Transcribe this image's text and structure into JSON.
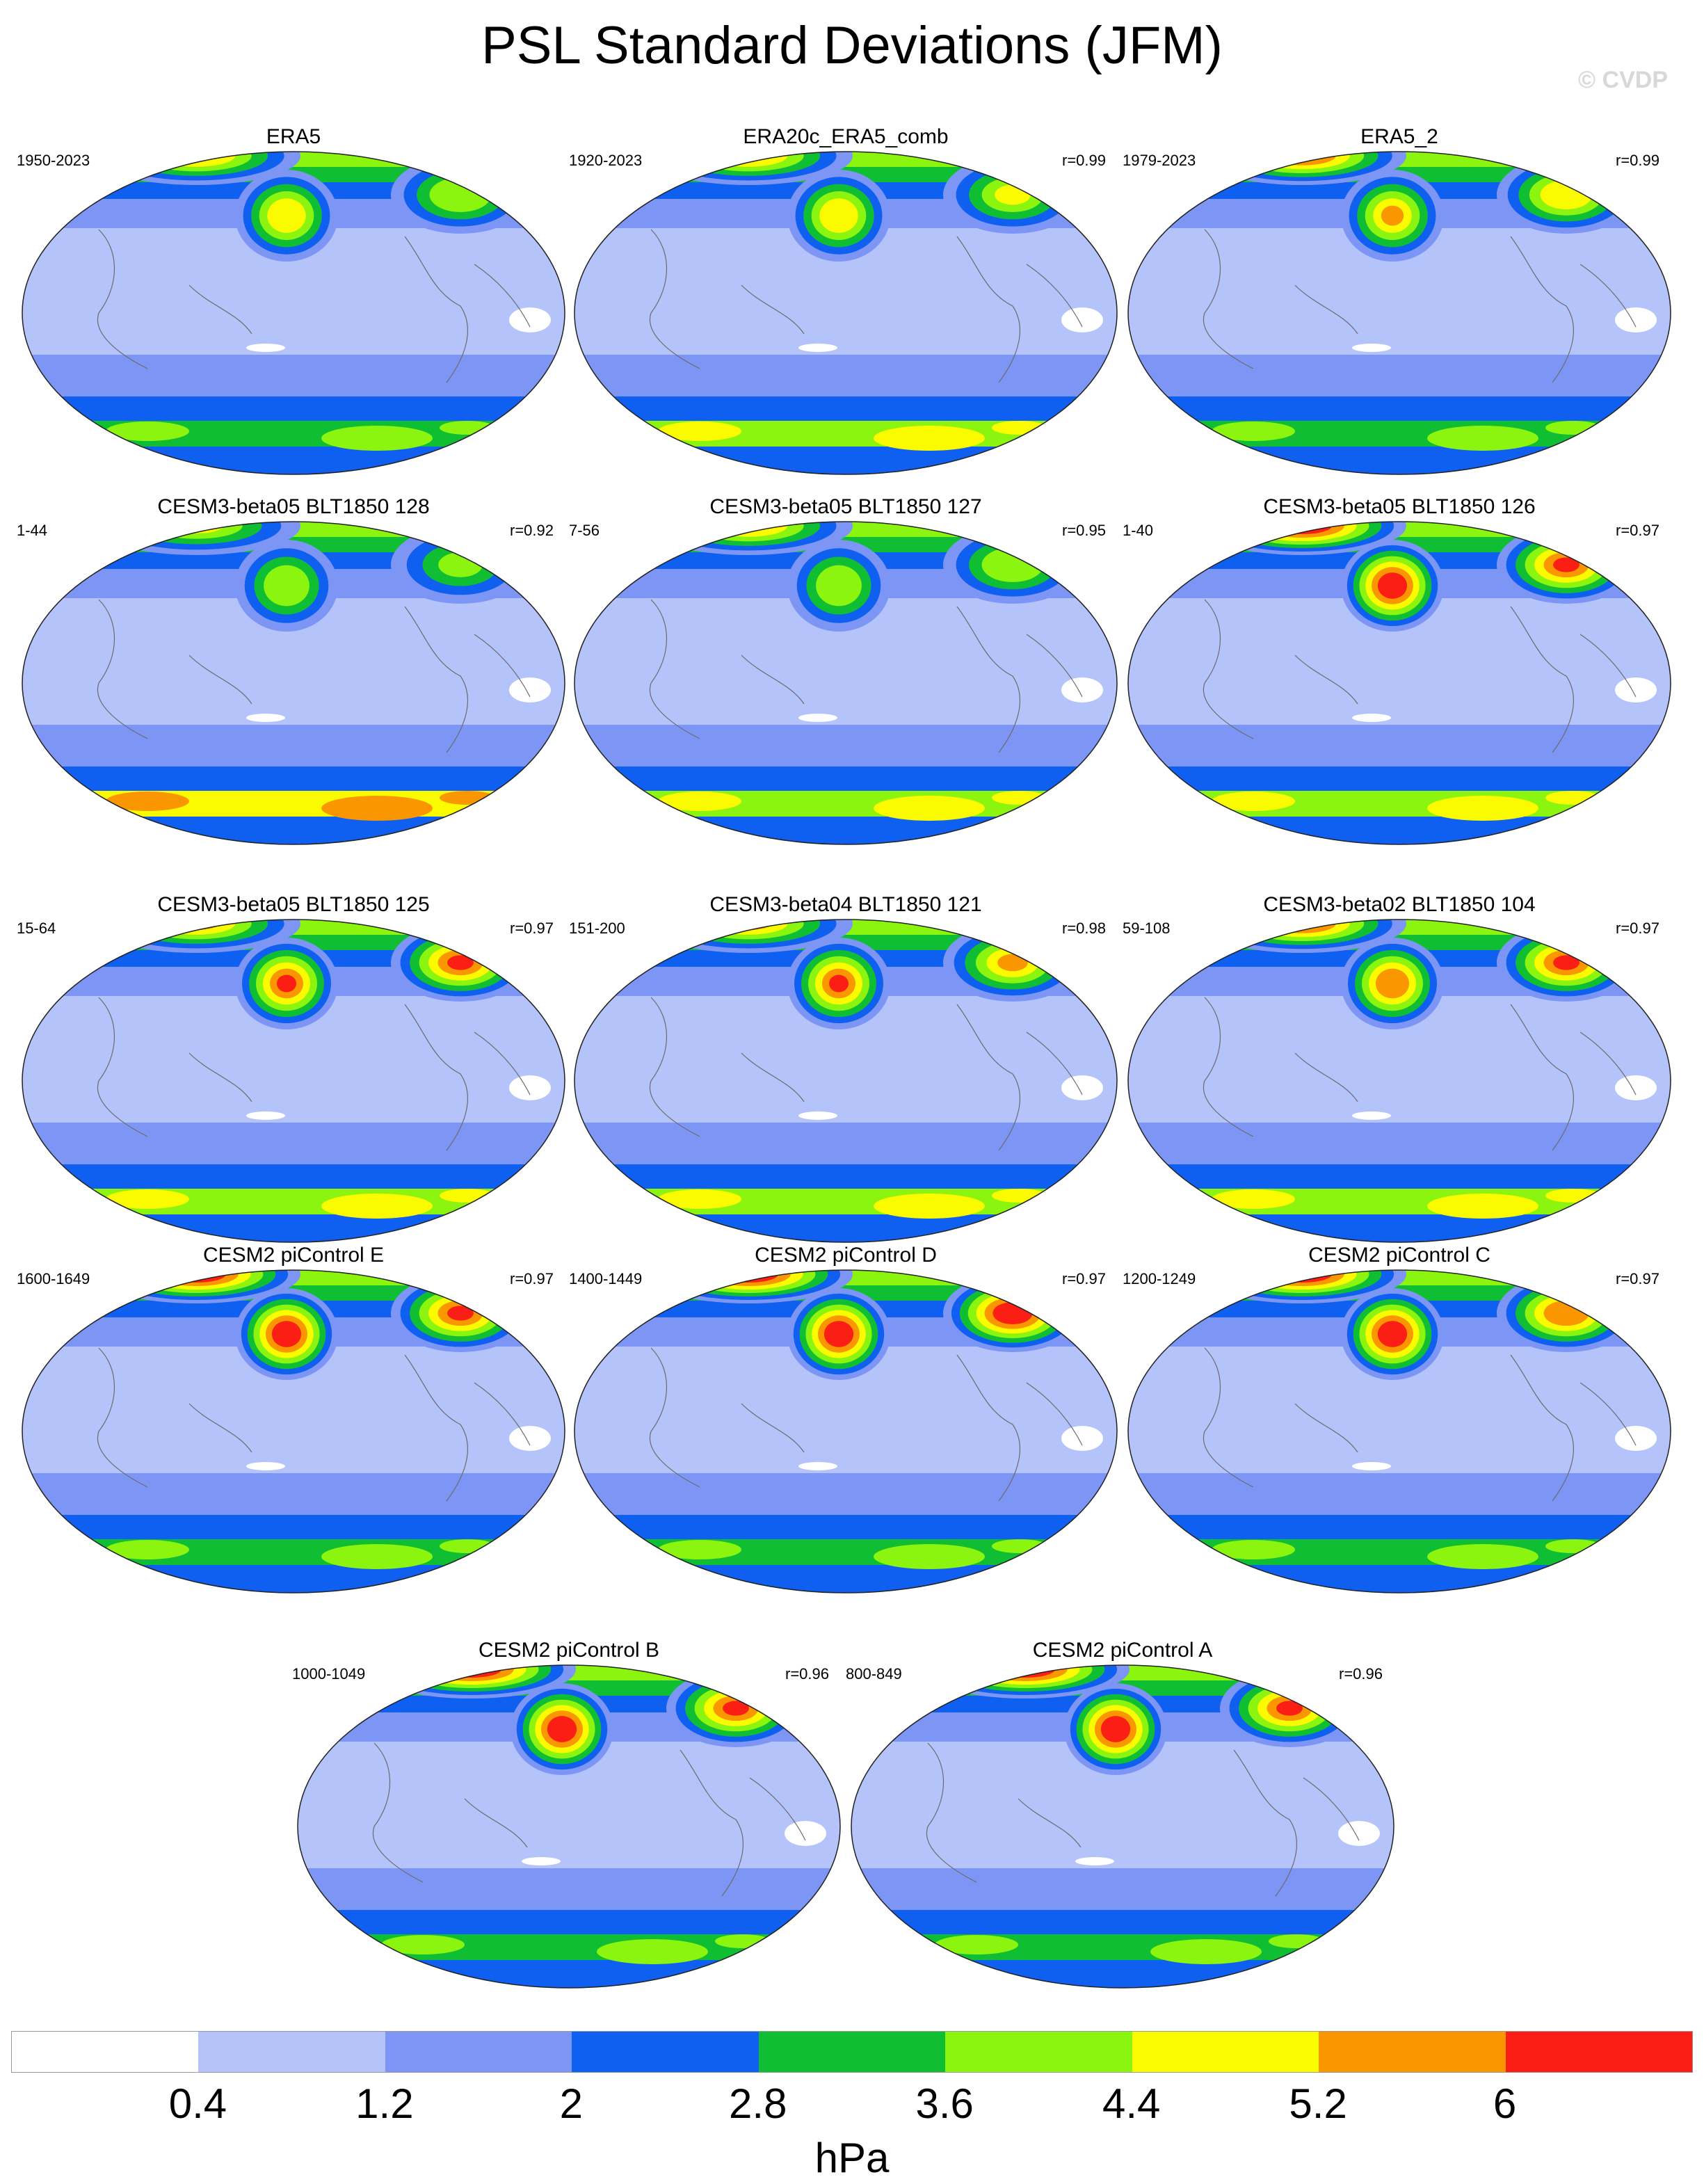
{
  "title": "PSL Standard Deviations (JFM)",
  "watermark": "© CVDP",
  "colorbar": {
    "colors": [
      "#ffffff",
      "#b4c3fa",
      "#7d96f5",
      "#0f5ff0",
      "#0fbe32",
      "#8cf50f",
      "#fafa00",
      "#fa9600",
      "#fa1e14"
    ],
    "ticks": [
      "0.4",
      "1.2",
      "2",
      "2.8",
      "3.6",
      "4.4",
      "5.2",
      "6"
    ],
    "units": "hPa"
  },
  "panels": [
    {
      "title": "ERA5",
      "years": "1950-2023",
      "corr": "",
      "intensity": [
        5.0,
        5.0,
        4.2
      ],
      "south": 3.2
    },
    {
      "title": "ERA20c_ERA5_comb",
      "years": "1920-2023",
      "corr": "r=0.99",
      "intensity": [
        5.0,
        5.0,
        4.5
      ],
      "south": 3.8
    },
    {
      "title": "ERA5_2",
      "years": "1979-2023",
      "corr": "r=0.99",
      "intensity": [
        5.6,
        5.4,
        5.0
      ],
      "south": 3.3
    },
    {
      "title": "CESM3-beta05 BLT1850 128",
      "years": "1-44",
      "corr": "r=0.92",
      "intensity": [
        4.6,
        4.2,
        3.8
      ],
      "south": 4.6
    },
    {
      "title": "CESM3-beta05 BLT1850 127",
      "years": "7-56",
      "corr": "r=0.95",
      "intensity": [
        4.8,
        4.3,
        4.0
      ],
      "south": 3.6
    },
    {
      "title": "CESM3-beta05 BLT1850 126",
      "years": "1-40",
      "corr": "r=0.97",
      "intensity": [
        6.5,
        6.4,
        6.2
      ],
      "south": 3.6
    },
    {
      "title": "CESM3-beta05 BLT1850 125",
      "years": "15-64",
      "corr": "r=0.97",
      "intensity": [
        5.2,
        6.3,
        6.0
      ],
      "south": 3.7
    },
    {
      "title": "CESM3-beta04 BLT1850 121",
      "years": "151-200",
      "corr": "r=0.98",
      "intensity": [
        5.4,
        6.1,
        5.4
      ],
      "south": 3.8
    },
    {
      "title": "CESM3-beta02 BLT1850 104",
      "years": "59-108",
      "corr": "r=0.97",
      "intensity": [
        6.2,
        5.6,
        6.0
      ],
      "south": 3.7
    },
    {
      "title": "CESM2 piControl E",
      "years": "1600-1649",
      "corr": "r=0.97",
      "intensity": [
        6.5,
        6.6,
        6.3
      ],
      "south": 3.5
    },
    {
      "title": "CESM2 piControl D",
      "years": "1400-1449",
      "corr": "r=0.97",
      "intensity": [
        6.5,
        6.6,
        6.5
      ],
      "south": 3.5
    },
    {
      "title": "CESM2 piControl C",
      "years": "1200-1249",
      "corr": "r=0.97",
      "intensity": [
        6.4,
        6.6,
        5.8
      ],
      "south": 3.5
    },
    {
      "title": "CESM2 piControl B",
      "years": "1000-1049",
      "corr": "r=0.96",
      "intensity": [
        6.5,
        6.6,
        6.0
      ],
      "south": 3.3
    },
    {
      "title": "CESM2 piControl A",
      "years": "800-849",
      "corr": "r=0.96",
      "intensity": [
        6.5,
        6.6,
        6.2
      ],
      "south": 3.3
    }
  ]
}
